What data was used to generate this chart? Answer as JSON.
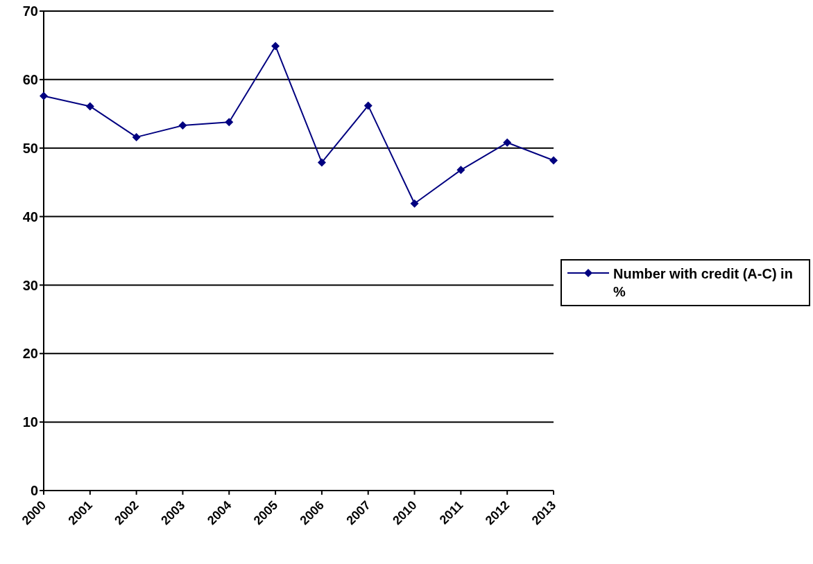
{
  "chart_data": {
    "type": "line",
    "categories": [
      "2000",
      "2001",
      "2002",
      "2003",
      "2004",
      "2005",
      "2006",
      "2007",
      "2010",
      "2011",
      "2012",
      "2013"
    ],
    "series": [
      {
        "name": "Number with credit (A-C) in %",
        "color": "#000080",
        "values": [
          57.6,
          56.1,
          51.6,
          53.3,
          53.8,
          64.9,
          47.9,
          56.2,
          41.9,
          46.8,
          50.8,
          48.2
        ]
      }
    ],
    "ylim": [
      0,
      70
    ],
    "yticks": [
      0,
      10,
      20,
      30,
      40,
      50,
      60,
      70
    ],
    "grid": "y",
    "legend": "right",
    "marker": "diamond",
    "line_style": "solid"
  }
}
